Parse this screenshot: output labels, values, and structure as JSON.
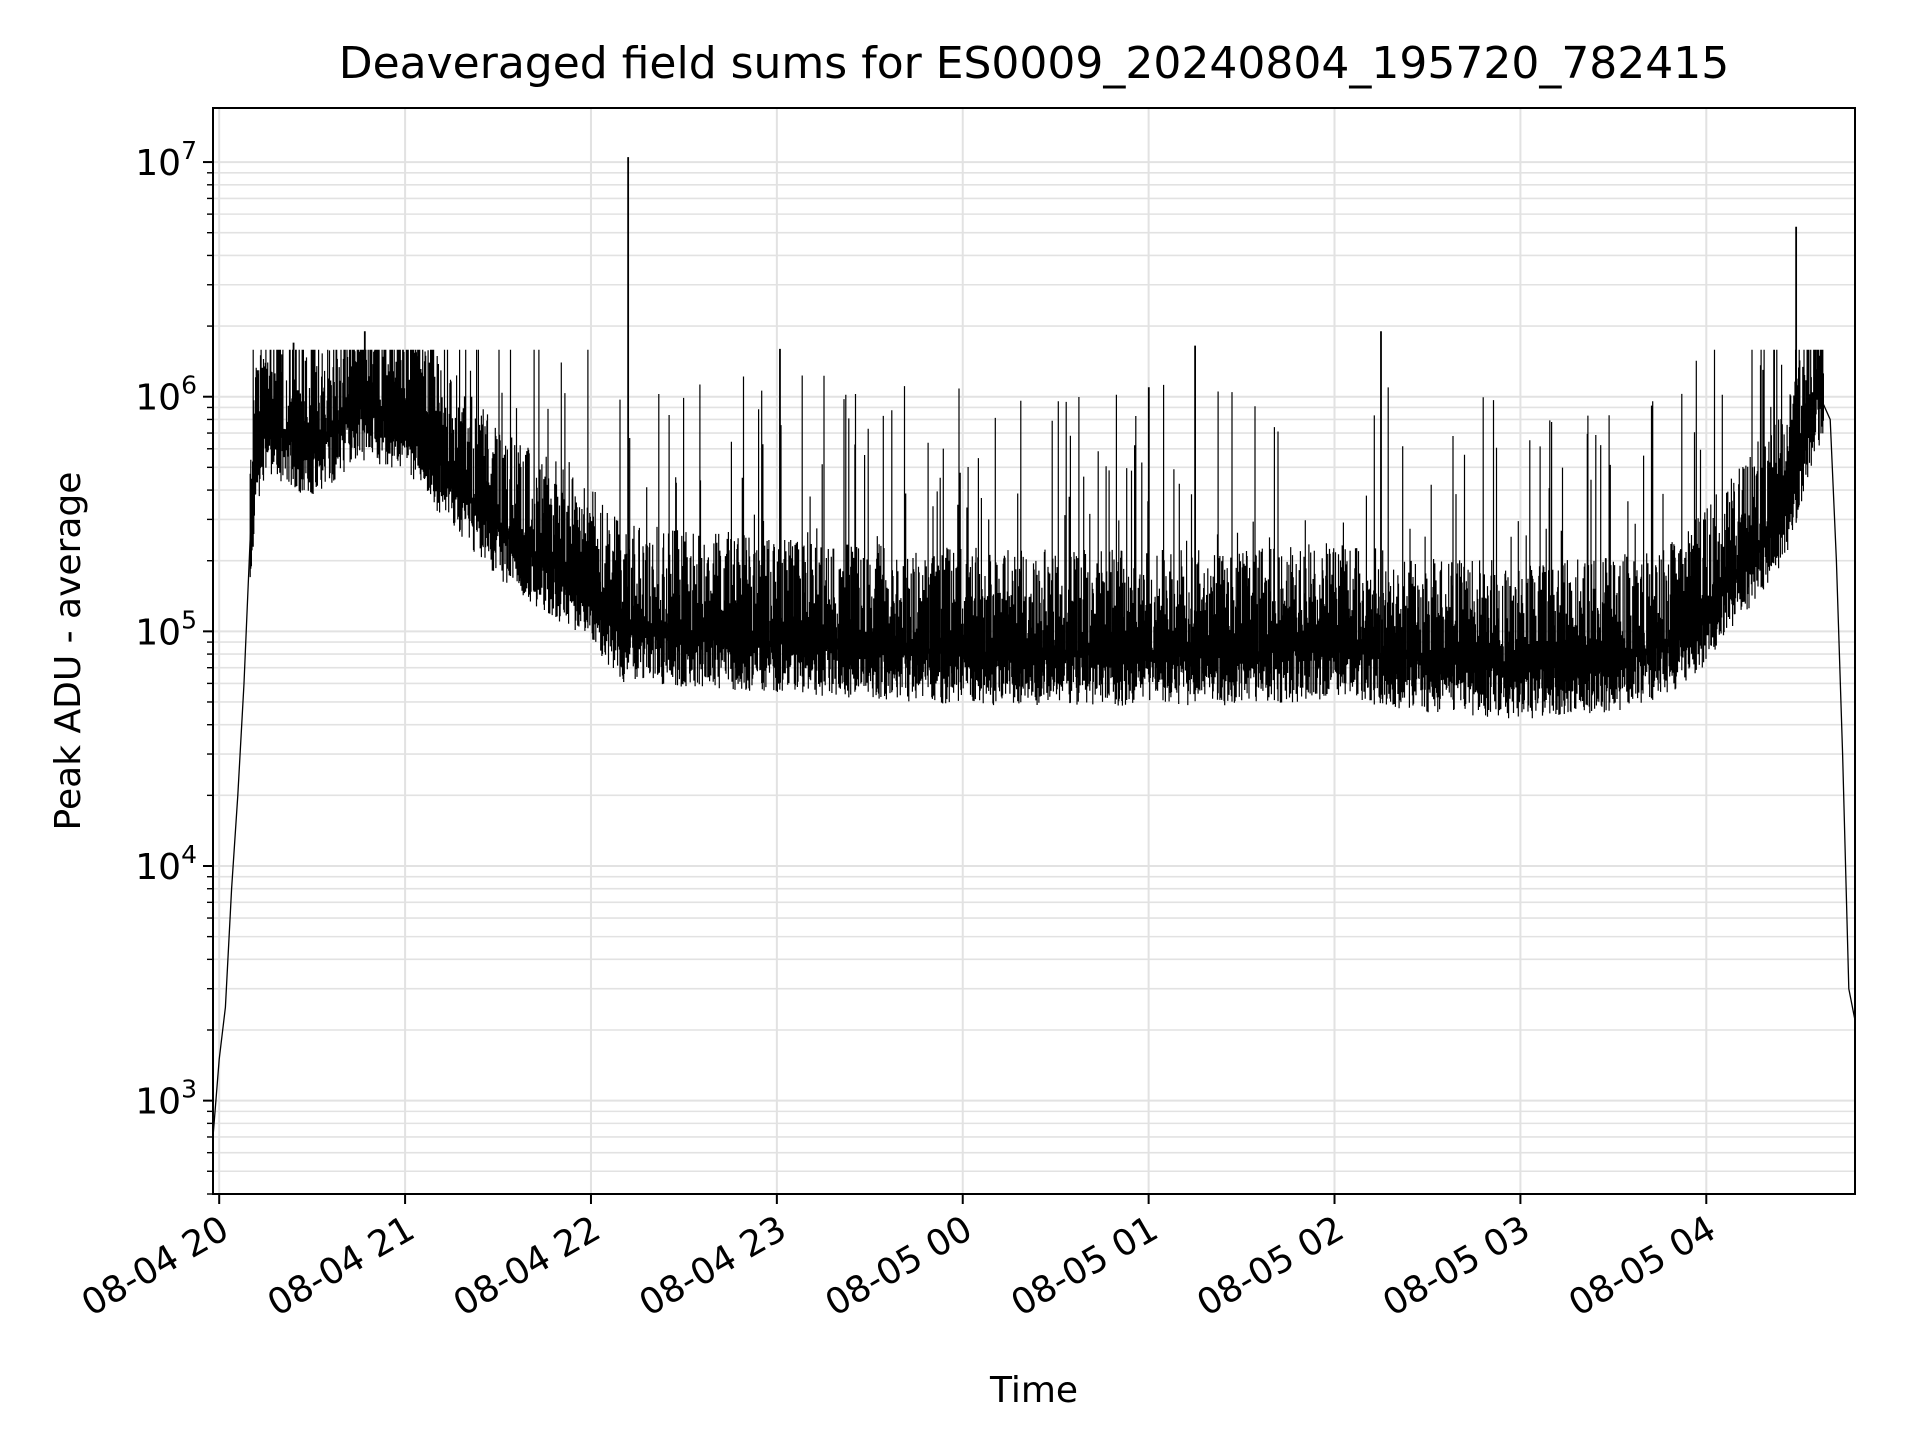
{
  "chart_data": {
    "type": "line",
    "title": "Deaveraged field sums for ES0009_20240804_195720_782415",
    "xlabel": "Time",
    "ylabel": "Peak ADU - average",
    "x_axis": {
      "type": "time",
      "range": [
        "2024-08-04 19:58",
        "2024-08-05 04:48"
      ],
      "tick_values": [
        "2024-08-04 20:00",
        "2024-08-04 21:00",
        "2024-08-04 22:00",
        "2024-08-04 23:00",
        "2024-08-05 00:00",
        "2024-08-05 01:00",
        "2024-08-05 02:00",
        "2024-08-05 03:00",
        "2024-08-05 04:00"
      ],
      "tick_labels": [
        "08-04 20",
        "08-04 21",
        "08-04 22",
        "08-04 23",
        "08-05 00",
        "08-05 01",
        "08-05 02",
        "08-05 03",
        "08-05 04"
      ]
    },
    "y_axis": {
      "scale": "log",
      "range": [
        400,
        17000000
      ],
      "tick_values": [
        1000,
        10000,
        100000,
        1000000,
        10000000
      ]
    },
    "grid": true,
    "series": [
      {
        "color": "#000000",
        "x": [
          "2024-08-04 19:58",
          "2024-08-04 20:00",
          "2024-08-04 20:02",
          "2024-08-04 20:04",
          "2024-08-04 20:06",
          "2024-08-04 20:08",
          "2024-08-04 20:10",
          "2024-08-04 20:12",
          "2024-08-04 20:15",
          "2024-08-04 20:20",
          "2024-08-04 20:30",
          "2024-08-04 20:45",
          "2024-08-04 21:00",
          "2024-08-04 21:15",
          "2024-08-04 21:30",
          "2024-08-04 21:45",
          "2024-08-04 22:00",
          "2024-08-04 22:10",
          "2024-08-04 22:20",
          "2024-08-04 22:30",
          "2024-08-04 23:00",
          "2024-08-04 23:30",
          "2024-08-05 00:00",
          "2024-08-05 00:30",
          "2024-08-05 01:00",
          "2024-08-05 01:30",
          "2024-08-05 02:00",
          "2024-08-05 02:30",
          "2024-08-05 03:00",
          "2024-08-05 03:30",
          "2024-08-05 03:50",
          "2024-08-05 04:00",
          "2024-08-05 04:10",
          "2024-08-05 04:20",
          "2024-08-05 04:26",
          "2024-08-05 04:30",
          "2024-08-05 04:36",
          "2024-08-05 04:40",
          "2024-08-05 04:42",
          "2024-08-05 04:44",
          "2024-08-05 04:46",
          "2024-08-05 04:48"
        ],
        "y": [
          700,
          1500,
          2500,
          8000,
          20000,
          60000,
          250000,
          500000,
          800000,
          700000,
          600000,
          900000,
          800000,
          450000,
          280000,
          200000,
          150000,
          100000,
          100000,
          95000,
          90000,
          85000,
          80000,
          80000,
          80000,
          80000,
          85000,
          75000,
          70000,
          75000,
          90000,
          120000,
          180000,
          260000,
          350000,
          500000,
          1050000,
          800000,
          200000,
          30000,
          3000,
          2200
        ]
      }
    ],
    "spikes": [
      {
        "x": "2024-08-04 22:12",
        "y": 10500000
      },
      {
        "x": "2024-08-05 04:29",
        "y": 5300000
      },
      {
        "x": "2024-08-04 20:24",
        "y": 1700000
      },
      {
        "x": "2024-08-04 20:47",
        "y": 1900000
      },
      {
        "x": "2024-08-05 02:15",
        "y": 1900000
      },
      {
        "x": "2024-08-04 23:01",
        "y": 1600000
      },
      {
        "x": "2024-08-05 01:15",
        "y": 1650000
      }
    ]
  }
}
